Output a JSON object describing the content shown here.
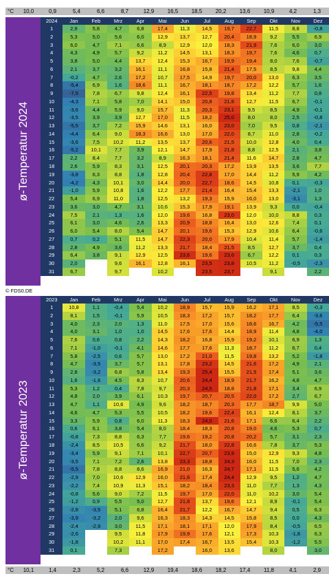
{
  "unit_label": "°C",
  "copyright": "© FDS0.DE",
  "months": [
    "Jan",
    "Feb",
    "Mrz",
    "Apr",
    "Mai",
    "Jun",
    "Jul",
    "Aug",
    "Sep",
    "Okt",
    "Nov",
    "Dez"
  ],
  "top_monthly_means": [
    "10,0",
    "0,9",
    "5,4",
    "6,6",
    "8,7",
    "12,9",
    "16,5",
    "18,5",
    "20,2",
    "13,6",
    "10,9",
    "4,2",
    "1,3"
  ],
  "bottom_monthly_means": [
    "10,1",
    "1,4",
    "2,3",
    "5,2",
    "6,6",
    "12,9",
    "19,4",
    "18,6",
    "18,2",
    "17,4",
    "11,8",
    "4,1",
    "2,9"
  ],
  "chart_data": [
    {
      "type": "heatmap",
      "title": "ø-Temperatur 2024",
      "year": "2024",
      "columns": [
        "Jan",
        "Feb",
        "Mrz",
        "Apr",
        "Mai",
        "Jun",
        "Jul",
        "Aug",
        "Sep",
        "Okt",
        "Nov",
        "Dez"
      ],
      "days": [
        "1",
        "2",
        "3",
        "4",
        "5",
        "6",
        "7",
        "8",
        "9",
        "10",
        "11",
        "12",
        "13",
        "14",
        "15",
        "16",
        "17",
        "18",
        "19",
        "20",
        "21",
        "22",
        "23",
        "24",
        "25",
        "26",
        "27",
        "28",
        "29",
        "30",
        "31"
      ],
      "values": [
        [
          "2,9",
          "5,8",
          "4,7",
          "6,8",
          "17,4",
          "11,3",
          "14,5",
          "19,7",
          "22,7",
          "11,5",
          "8,8",
          "-0,8"
        ],
        [
          "5,3",
          "5,0",
          "5,6",
          "6,0",
          "12,9",
          "13,7",
          "12,7",
          "20,4",
          "18,9",
          "9,2",
          "5,5",
          "6,9"
        ],
        [
          "6,0",
          "4,7",
          "7,1",
          "6,6",
          "8,9",
          "12,9",
          "12,0",
          "18,3",
          "21,9",
          "7,6",
          "6,0",
          "3,0"
        ],
        [
          "4,3",
          "4,9",
          "5,7",
          "9,2",
          "11,2",
          "14,5",
          "13,1",
          "18,3",
          "19,7",
          "7,6",
          "4,6",
          "0,7"
        ],
        [
          "3,8",
          "5,0",
          "4,4",
          "13,7",
          "12,4",
          "15,3",
          "16,7",
          "19,9",
          "19,4",
          "8,0",
          "7,6",
          "-0,7"
        ],
        [
          "2,1",
          "3,7",
          "3,2",
          "16,1",
          "11,1",
          "16,8",
          "15,8",
          "21,4",
          "17,5",
          "8,5",
          "9,8",
          "4,4"
        ],
        [
          "-0,2",
          "4,7",
          "2,6",
          "17,2",
          "10,7",
          "17,5",
          "14,9",
          "19,7",
          "20,0",
          "13,0",
          "6,3",
          "3,5"
        ],
        [
          "-5,4",
          "6,9",
          "1,6",
          "18,6",
          "11,1",
          "16,7",
          "18,1",
          "18,7",
          "17,2",
          "12,2",
          "5,7",
          "1,6"
        ],
        [
          "-7,5",
          "7,8",
          "6,7",
          "9,8",
          "12,4",
          "16,1",
          "22,5",
          "19,8",
          "13,4",
          "11,2",
          "7,7",
          "0,8"
        ],
        [
          "-4,3",
          "7,1",
          "5,8",
          "7,0",
          "14,1",
          "15,0",
          "20,8",
          "21,8",
          "12,7",
          "11,5",
          "6,7",
          "-0,1"
        ],
        [
          "-3,6",
          "4,4",
          "5,9",
          "9,0",
          "15,7",
          "11,3",
          "20,3",
          "23,1",
          "9,5",
          "8,5",
          "4,9",
          "-0,1"
        ],
        [
          "-3,5",
          "3,9",
          "3,9",
          "12,7",
          "17,0",
          "11,5",
          "18,2",
          "25,0",
          "8,0",
          "8,0",
          "2,5",
          "-0,8"
        ],
        [
          "-5,5",
          "3,7",
          "7,2",
          "15,9",
          "14,6",
          "13,1",
          "16,0",
          "23,0",
          "7,0",
          "9,5",
          "0,8",
          "-2,1"
        ],
        [
          "-4,4",
          "6,4",
          "9,0",
          "18,3",
          "16,6",
          "13,0",
          "17,0",
          "22,0",
          "8,7",
          "11,0",
          "2,8",
          "-0,2"
        ],
        [
          "-3,6",
          "7,5",
          "10,2",
          "11,2",
          "13,5",
          "13,7",
          "20,6",
          "21,5",
          "10,0",
          "12,8",
          "4,0",
          "0,4"
        ],
        [
          "-5,2",
          "10,1",
          "7,7",
          "3,9",
          "12,1",
          "14,7",
          "17,9",
          "21,8",
          "8,8",
          "12,5",
          "2,1",
          "3,8"
        ],
        [
          "2,2",
          "8,4",
          "7,7",
          "3,2",
          "8,9",
          "16,3",
          "18,1",
          "21,4",
          "11,6",
          "14,7",
          "2,8",
          "4,7"
        ],
        [
          "2,6",
          "5,9",
          "8,3",
          "3,1",
          "12,5",
          "20,1",
          "20,3",
          "17,2",
          "13,9",
          "13,5",
          "3,6",
          "7,7"
        ],
        [
          "-3,8",
          "6,3",
          "8,8",
          "1,8",
          "12,8",
          "20,4",
          "22,8",
          "17,0",
          "14,4",
          "11,2",
          "5,9",
          "4,2"
        ],
        [
          "-4,2",
          "4,3",
          "10,1",
          "3,0",
          "14,4",
          "20,0",
          "22,7",
          "18,6",
          "14,5",
          "10,8",
          "0,1",
          "-0,3"
        ],
        [
          "-1,0",
          "5,9",
          "10,8",
          "1,6",
          "12,2",
          "17,7",
          "21,4",
          "16,4",
          "15,4",
          "13,3",
          "-2,1",
          "1,0"
        ],
        [
          "5,4",
          "6,9",
          "11,0",
          "1,8",
          "12,5",
          "13,2",
          "19,3",
          "15,9",
          "16,0",
          "13,0",
          "-3,1",
          "1,3"
        ],
        [
          "3,6",
          "3,0",
          "4,7",
          "3,1",
          "10,6",
          "15,3",
          "17,9",
          "19,1",
          "13,9",
          "9,3",
          "0,0",
          "-0,4"
        ],
        [
          "7,5",
          "2,1",
          "1,3",
          "1,6",
          "12,0",
          "19,6",
          "16,8",
          "23,0",
          "12,0",
          "10,0",
          "8,8",
          "0,3"
        ],
        [
          "6,1",
          "3,0",
          "4,6",
          "2,6",
          "13,3",
          "20,9",
          "18,8",
          "16,4",
          "13,0",
          "12,6",
          "7,4",
          "0,1"
        ],
        [
          "6,0",
          "5,4",
          "8,0",
          "5,4",
          "14,7",
          "20,1",
          "19,6",
          "15,3",
          "12,9",
          "10,6",
          "6,4",
          "-0,6"
        ],
        [
          "0,7",
          "0,2",
          "5,1",
          "11,5",
          "14,7",
          "22,3",
          "20,0",
          "17,9",
          "10,4",
          "11,4",
          "5,7",
          "-1,4"
        ],
        [
          "2,8",
          "4,9",
          "3,6",
          "11,2",
          "13,3",
          "21,7",
          "18,4",
          "21,5",
          "8,5",
          "12,7",
          "3,7",
          "0,4"
        ],
        [
          "6,4",
          "3,8",
          "9,1",
          "12,9",
          "12,5",
          "23,6",
          "19,6",
          "23,6",
          "6,7",
          "12,2",
          "0,1",
          "0,3"
        ],
        [
          "2,0",
          "",
          "9,6",
          "16,1",
          "12,8",
          "16,1",
          "23,5",
          "23,8",
          "10,5",
          "11,2",
          "-0,5",
          "-2,3"
        ],
        [
          "6,7",
          "",
          "9,7",
          "",
          "10,2",
          "",
          "23,5",
          "23,7",
          "",
          "9,1",
          "",
          "2,2"
        ]
      ]
    },
    {
      "type": "heatmap",
      "title": "ø-Temperatur 2023",
      "year": "2023",
      "columns": [
        "Jan",
        "Feb",
        "Mrz",
        "Apr",
        "Mai",
        "Jun",
        "Jul",
        "Aug",
        "Sep",
        "Okt",
        "Nov",
        "Dez"
      ],
      "days": [
        "1",
        "2",
        "3",
        "4",
        "5",
        "6",
        "7",
        "8",
        "9",
        "10",
        "11",
        "12",
        "13",
        "14",
        "15",
        "16",
        "17",
        "18",
        "19",
        "20",
        "21",
        "22",
        "23",
        "24",
        "25",
        "26",
        "27",
        "28",
        "29",
        "30",
        "31"
      ],
      "values": [
        [
          "10,8",
          "1,1",
          "-0,4",
          "5,4",
          "10,2",
          "18,9",
          "15,7",
          "15,9",
          "16,2",
          "17,1",
          "8,5",
          "-0,3"
        ],
        [
          "8,1",
          "1,5",
          "-0,1",
          "5,9",
          "10,5",
          "18,3",
          "17,2",
          "15,7",
          "18,2",
          "17,7",
          "6,4",
          "-3,6"
        ],
        [
          "4,0",
          "2,3",
          "2,0",
          "1,3",
          "11,0",
          "17,5",
          "17,0",
          "15,6",
          "18,6",
          "16,7",
          "4,2",
          "-5,5"
        ],
        [
          "4,0",
          "3,1",
          "1,0",
          "1,0",
          "14,5",
          "17,6",
          "17,6",
          "14,4",
          "18,9",
          "11,4",
          "4,8",
          "-4,0"
        ],
        [
          "7,6",
          "0,6",
          "0,8",
          "2,2",
          "14,3",
          "18,2",
          "16,8",
          "15,9",
          "19,2",
          "10,1",
          "6,9",
          "1,3"
        ],
        [
          "7,1",
          "-1,0",
          "-0,1",
          "4,1",
          "14,6",
          "17,7",
          "17,6",
          "11,3",
          "18,7",
          "11,2",
          "6,7",
          "0,4"
        ],
        [
          "5,8",
          "-2,5",
          "0,6",
          "5,7",
          "13,0",
          "17,2",
          "21,0",
          "11,5",
          "19,8",
          "13,2",
          "5,2",
          "-1,8"
        ],
        [
          "4,7",
          "-3,5",
          "3,7",
          "5,7",
          "13,1",
          "17,8",
          "23,2",
          "14,5",
          "21,6",
          "17,2",
          "4,9",
          "2,1"
        ],
        [
          "2,8",
          "-3,2",
          "6,8",
          "5,8",
          "13,4",
          "19,3",
          "25,4",
          "15,5",
          "21,5",
          "17,4",
          "5,1",
          "3,6"
        ],
        [
          "1,6",
          "-1,6",
          "4,5",
          "8,3",
          "10,7",
          "20,6",
          "24,4",
          "18,9",
          "21,7",
          "16,2",
          "4,8",
          "4,7"
        ],
        [
          "5,3",
          "1,2",
          "0,4",
          "7,8",
          "9,7",
          "20,3",
          "24,5",
          "18,8",
          "21,8",
          "17,1",
          "3,4",
          "6,9"
        ],
        [
          "4,8",
          "2,0",
          "3,9",
          "6,1",
          "10,3",
          "19,7",
          "20,7",
          "20,5",
          "22,0",
          "17,2",
          "2,7",
          "6,7"
        ],
        [
          "4,7",
          "1,1",
          "10,6",
          "4,9",
          "9,6",
          "18,2",
          "18,7",
          "20,3",
          "17,7",
          "18,7",
          "9,9",
          "5,0"
        ],
        [
          "4,6",
          "4,7",
          "5,3",
          "5,5",
          "10,5",
          "18,2",
          "19,6",
          "22,4",
          "16,1",
          "12,4",
          "8,1",
          "3,7"
        ],
        [
          "3,3",
          "5,9",
          "0,8",
          "6,0",
          "11,3",
          "18,3",
          "24,0",
          "21,6",
          "17,1",
          "6,6",
          "6,4",
          "2,2"
        ],
        [
          "0,6",
          "6,1",
          "3,8",
          "5,4",
          "8,0",
          "18,4",
          "18,3",
          "20,8",
          "19,0",
          "4,6",
          "5,3",
          "0,7"
        ],
        [
          "-0,8",
          "7,3",
          "8,8",
          "6,3",
          "7,7",
          "19,6",
          "19,2",
          "20,8",
          "20,2",
          "5,7",
          "3,1",
          "2,3"
        ],
        [
          "-2,4",
          "8,5",
          "10,5",
          "6,6",
          "9,2",
          "21,7",
          "18,0",
          "22,8",
          "16,6",
          "7,8",
          "3,7",
          "5,3"
        ],
        [
          "-3,4",
          "5,9",
          "9,1",
          "7,1",
          "10,1",
          "22,7",
          "20,7",
          "23,9",
          "15,0",
          "12,9",
          "9,3",
          "4,8"
        ],
        [
          "-3,5",
          "7,1",
          "7,2",
          "2,6",
          "13,8",
          "23,3",
          "18,8",
          "24,3",
          "16,0",
          "11,5",
          "7,0",
          "2,3"
        ],
        [
          "-5,5",
          "7,8",
          "8,8",
          "8,6",
          "16,9",
          "21,0",
          "16,3",
          "24,7",
          "17,1",
          "11,5",
          "5,6",
          "4,2"
        ],
        [
          "-2,9",
          "7,0",
          "10,6",
          "12,9",
          "16,0",
          "21,6",
          "17,4",
          "24,4",
          "12,9",
          "9,5",
          "1,2",
          "4,7"
        ],
        [
          "-2,2",
          "7,4",
          "10,9",
          "11,3",
          "15,1",
          "18,2",
          "18,4",
          "23,3",
          "11,0",
          "7,7",
          "1,3",
          "4,3"
        ],
        [
          "-0,8",
          "5,6",
          "9,0",
          "7,2",
          "11,5",
          "19,7",
          "17,0",
          "22,0",
          "11,0",
          "10,2",
          "3,0",
          "5,4"
        ],
        [
          "-1,2",
          "0,9",
          "5,5",
          "5,0",
          "12,7",
          "21,8",
          "13,7",
          "19,6",
          "12,1",
          "8,9",
          "-0,1",
          "5,4"
        ],
        [
          "-2,8",
          "-3,5",
          "5,1",
          "6,8",
          "16,4",
          "21,7",
          "12,2",
          "16,7",
          "14,7",
          "9,4",
          "0,5",
          "6,3"
        ],
        [
          "-3,9",
          "-3,2",
          "2,0",
          "9,6",
          "16,3",
          "18,3",
          "14,3",
          "14,5",
          "15,8",
          "8,5",
          "0,0",
          "4,3"
        ],
        [
          "-2,4",
          "-2,9",
          "3,0",
          "11,5",
          "17,1",
          "18,1",
          "17,1",
          "12,0",
          "17,9",
          "8,4",
          "-0,5",
          "6,5"
        ],
        [
          "-2,6",
          "",
          "9,5",
          "11,8",
          "17,9",
          "19,9",
          "17,6",
          "12,1",
          "17,3",
          "10,3",
          "-1,8",
          "6,3"
        ],
        [
          "-1,8",
          "",
          "10,2",
          "11,1",
          "17,0",
          "17,4",
          "16,7",
          "13,5",
          "15,4",
          "10,3",
          "-1,2",
          "5,5"
        ],
        [
          "0,1",
          "",
          "7,3",
          "",
          "17,2",
          "",
          "16,0",
          "13,6",
          "",
          "8,0",
          "",
          "3,0"
        ]
      ]
    }
  ]
}
